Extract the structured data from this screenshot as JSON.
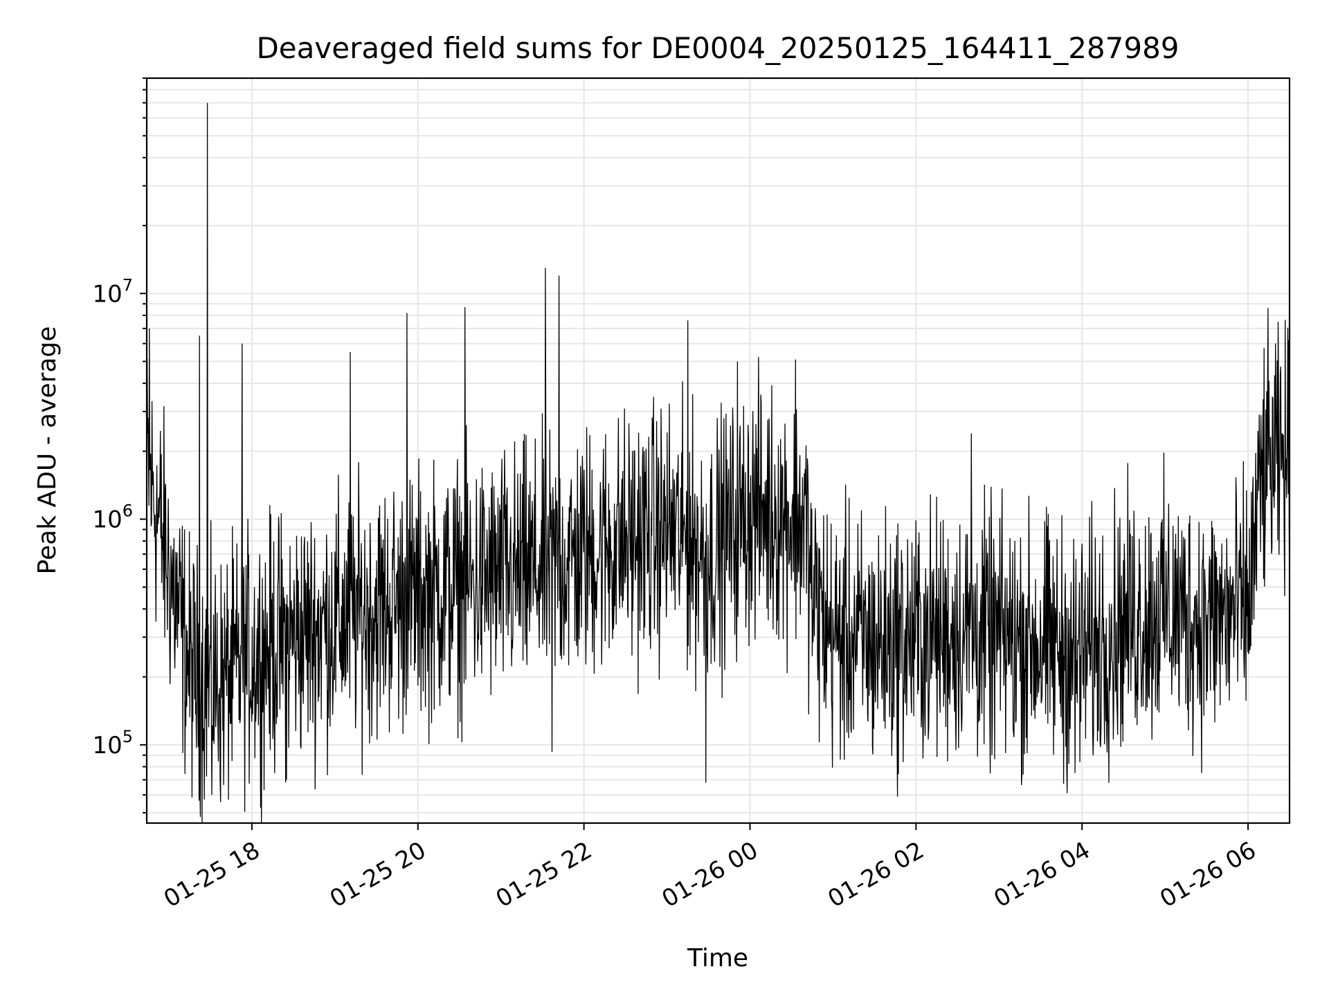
{
  "chart_data": {
    "type": "line",
    "title": "Deaveraged field sums for DE0004_20250125_164411_287989",
    "xlabel": "Time",
    "ylabel": "Peak ADU - average",
    "yscale": "log",
    "ylim": [
      45000,
      90000000
    ],
    "xlim": [
      "2025-01-25 16:44",
      "2025-01-26 06:30"
    ],
    "grid": true,
    "x_tick_labels": [
      "01-25 18",
      "01-25 20",
      "01-25 22",
      "01-26 00",
      "01-26 02",
      "01-26 04",
      "01-26 06"
    ],
    "y_tick_labels": [
      {
        "base": "10",
        "exp": "5",
        "value": 100000
      },
      {
        "base": "10",
        "exp": "6",
        "value": 1000000
      },
      {
        "base": "10",
        "exp": "7",
        "value": 10000000
      }
    ],
    "series": [
      {
        "x": [
          "2025-01-25 16:44",
          "2025-01-25 17:00",
          "2025-01-25 17:15",
          "2025-01-25 17:30",
          "2025-01-25 17:45",
          "2025-01-25 18:00",
          "2025-01-25 18:30",
          "2025-01-25 19:00",
          "2025-01-25 19:30",
          "2025-01-25 20:00",
          "2025-01-25 20:30",
          "2025-01-25 21:00",
          "2025-01-25 21:30",
          "2025-01-25 22:00",
          "2025-01-25 22:30",
          "2025-01-25 23:00",
          "2025-01-25 23:30",
          "2025-01-26 00:00",
          "2025-01-26 00:40",
          "2025-01-26 00:45",
          "2025-01-26 01:00",
          "2025-01-26 01:30",
          "2025-01-26 02:00",
          "2025-01-26 02:30",
          "2025-01-26 03:00",
          "2025-01-26 03:30",
          "2025-01-26 04:00",
          "2025-01-26 04:30",
          "2025-01-26 05:00",
          "2025-01-26 05:30",
          "2025-01-26 06:00",
          "2025-01-26 06:10",
          "2025-01-26 06:30"
        ],
        "y": [
          1800000,
          600000,
          220000,
          180000,
          200000,
          250000,
          300000,
          350000,
          400000,
          450000,
          500000,
          550000,
          600000,
          700000,
          800000,
          900000,
          700000,
          1100000,
          1000000,
          450000,
          300000,
          280000,
          300000,
          320000,
          300000,
          280000,
          250000,
          350000,
          400000,
          350000,
          400000,
          1600000,
          1900000
        ]
      }
    ],
    "spikes": [
      {
        "x": "2025-01-25 16:46",
        "y": 7000000
      },
      {
        "x": "2025-01-25 17:22",
        "y": 6500000
      },
      {
        "x": "2025-01-25 17:28",
        "y": 70000000
      },
      {
        "x": "2025-01-25 17:53",
        "y": 6000000
      },
      {
        "x": "2025-01-25 19:11",
        "y": 5500000
      },
      {
        "x": "2025-01-25 19:52",
        "y": 8200000
      },
      {
        "x": "2025-01-25 20:34",
        "y": 8700000
      },
      {
        "x": "2025-01-25 21:32",
        "y": 13000000
      },
      {
        "x": "2025-01-25 21:42",
        "y": 12000000
      },
      {
        "x": "2025-01-25 23:15",
        "y": 7600000
      },
      {
        "x": "2025-01-25 23:51",
        "y": 5000000
      },
      {
        "x": "2025-01-26 00:33",
        "y": 5100000
      },
      {
        "x": "2025-01-26 02:40",
        "y": 2400000
      },
      {
        "x": "2025-01-26 06:15",
        "y": 4100000
      }
    ],
    "dips": [
      {
        "x": "2025-01-25 17:31",
        "y": 60000
      },
      {
        "x": "2025-01-25 18:25",
        "y": 70000
      },
      {
        "x": "2025-01-25 21:37",
        "y": 93000
      },
      {
        "x": "2025-01-25 23:28",
        "y": 68000
      },
      {
        "x": "2025-01-26 02:55",
        "y": 90000
      },
      {
        "x": "2025-01-26 03:55",
        "y": 75000
      }
    ]
  }
}
